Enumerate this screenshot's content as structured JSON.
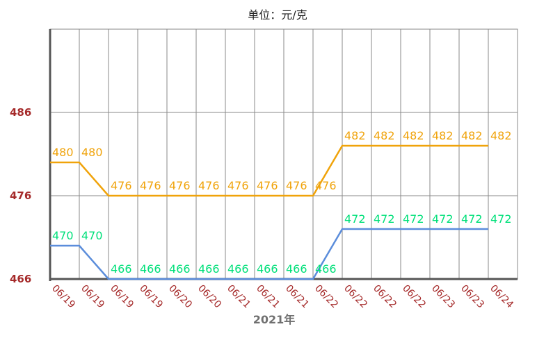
{
  "chart_data": {
    "type": "line",
    "title": "单位：元/克",
    "xlabel": "2021年",
    "ylabel": "",
    "categories": [
      "06/19",
      "06/19",
      "06/19",
      "06/19",
      "06/20",
      "06/20",
      "06/21",
      "06/21",
      "06/21",
      "06/22",
      "06/22",
      "06/22",
      "06/22",
      "06/23",
      "06/23",
      "06/24"
    ],
    "yticks": [
      466,
      476,
      486
    ],
    "ylim": [
      466,
      496
    ],
    "grid": true,
    "series": [
      {
        "values": [
          480,
          480,
          476,
          476,
          476,
          476,
          476,
          476,
          476,
          476,
          482,
          482,
          482,
          482,
          482,
          482
        ],
        "labels": [
          "480",
          "480",
          "476",
          "476",
          "476",
          "476",
          "476",
          "476",
          "476",
          "476",
          "482",
          "482",
          "482",
          "482",
          "482",
          "482"
        ],
        "line_color": "#f0a30a",
        "label_color": "#f0a30a"
      },
      {
        "values": [
          470,
          470,
          466,
          466,
          466,
          466,
          466,
          466,
          466,
          466,
          472,
          472,
          472,
          472,
          472,
          472
        ],
        "labels": [
          "470",
          "470",
          "466",
          "466",
          "466",
          "466",
          "466",
          "466",
          "466",
          "466",
          "472",
          "472",
          "472",
          "472",
          "472",
          "472"
        ],
        "line_color": "#5b8ddb",
        "label_color": "#00e07a"
      }
    ]
  }
}
